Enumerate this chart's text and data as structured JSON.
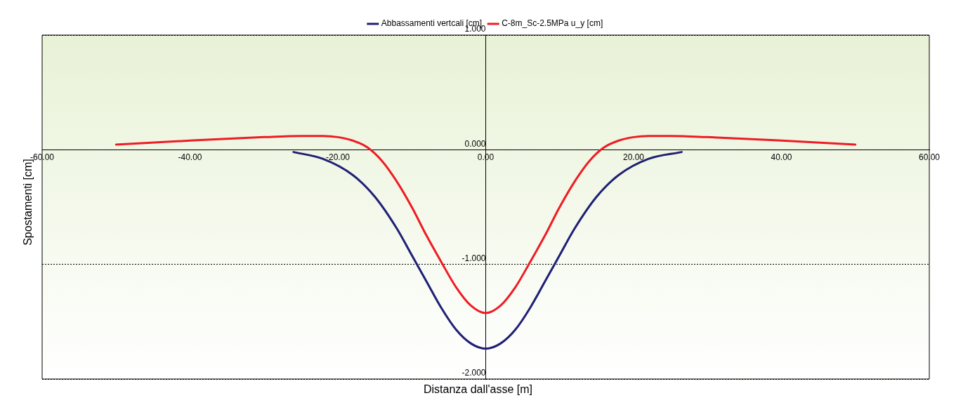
{
  "chart_data": {
    "type": "line",
    "xlabel": "Distanza dall'asse [m]",
    "ylabel": "Spostamenti [cm]",
    "xlim": [
      -60,
      60
    ],
    "xticks": [
      {
        "value": -60,
        "label": "-60.00"
      },
      {
        "value": -40,
        "label": "-40.00"
      },
      {
        "value": -20,
        "label": "-20.00"
      },
      {
        "value": 0,
        "label": "0.00"
      },
      {
        "value": 20,
        "label": "20.00"
      },
      {
        "value": 40,
        "label": "40.00"
      },
      {
        "value": 60,
        "label": "60.00"
      }
    ],
    "ylim": [
      -2,
      1
    ],
    "yticks": [
      {
        "value": -2,
        "label": "-2.000"
      },
      {
        "value": -1,
        "label": "-1.000"
      },
      {
        "value": 0,
        "label": "0.000"
      },
      {
        "value": 1,
        "label": "1.000"
      }
    ],
    "grid": "y",
    "legend": "top",
    "marker": "none",
    "line_style": "solid",
    "series": [
      {
        "name": "Abbassamenti vertcali [cm]",
        "color": "#1f1f75",
        "x": [
          -26,
          -22,
          -18,
          -15,
          -12,
          -10,
          -8,
          -6,
          -4,
          -2,
          0,
          2,
          4,
          6,
          8,
          10,
          12,
          15,
          18,
          22,
          26.5
        ],
        "values": [
          -0.02,
          -0.08,
          -0.22,
          -0.41,
          -0.69,
          -0.92,
          -1.15,
          -1.38,
          -1.57,
          -1.69,
          -1.735,
          -1.69,
          -1.57,
          -1.38,
          -1.15,
          -0.92,
          -0.69,
          -0.41,
          -0.22,
          -0.08,
          -0.02
        ]
      },
      {
        "name": "C-8m_Sc-2.5MPa u_y [cm]",
        "color": "#ee1c24",
        "x": [
          -50,
          -40,
          -30,
          -25,
          -22,
          -20,
          -18,
          -16,
          -14,
          -12,
          -10,
          -8,
          -6,
          -4,
          -2,
          0,
          2,
          4,
          6,
          8,
          10,
          12,
          14,
          16,
          18,
          20,
          22,
          25,
          30,
          40,
          50
        ],
        "values": [
          0.045,
          0.08,
          0.11,
          0.12,
          0.12,
          0.11,
          0.08,
          0.02,
          -0.1,
          -0.28,
          -0.5,
          -0.75,
          -0.98,
          -1.2,
          -1.36,
          -1.425,
          -1.36,
          -1.2,
          -0.98,
          -0.75,
          -0.5,
          -0.28,
          -0.1,
          0.02,
          0.08,
          0.11,
          0.12,
          0.12,
          0.11,
          0.08,
          0.045
        ]
      }
    ]
  }
}
